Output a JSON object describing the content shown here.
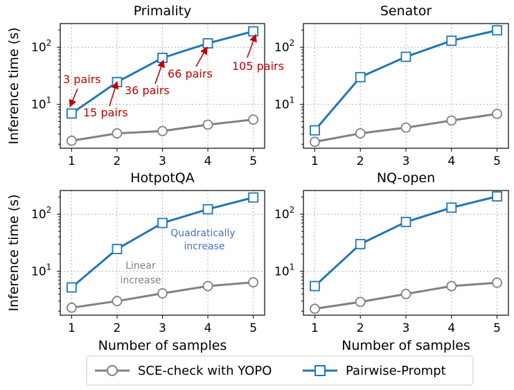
{
  "legend": {
    "placement": "bottom-center",
    "items": [
      {
        "label": "SCE-check with YOPO",
        "color": "#808080",
        "marker": "circle"
      },
      {
        "label": "Pairwise-Prompt",
        "color": "#1f77b4",
        "marker": "square"
      }
    ]
  },
  "colors": {
    "sce": "#808080",
    "pairwise": "#1f77b4",
    "pairs_annotation": "#c00000",
    "quadratic_annotation": "#4472c4",
    "linear_annotation": "#808080"
  },
  "chart_data": [
    {
      "type": "line",
      "title": "Primality",
      "xlabel": "",
      "ylabel": "Inference time (s)",
      "yscale": "log",
      "ylim": [
        1.7,
        260
      ],
      "xlim": [
        0.75,
        5.25
      ],
      "x": [
        1,
        2,
        3,
        4,
        5
      ],
      "xticks": [
        "1",
        "2",
        "3",
        "4",
        "5"
      ],
      "yticks": [
        {
          "value": 10,
          "base": "10",
          "exp": "1"
        },
        {
          "value": 100,
          "base": "10",
          "exp": "2"
        }
      ],
      "grid": true,
      "series": [
        {
          "name": "SCE-check with YOPO",
          "values": [
            2.3,
            3.1,
            3.4,
            4.4,
            5.4
          ]
        },
        {
          "name": "Pairwise-Prompt",
          "values": [
            6.9,
            24.5,
            65,
            117,
            190
          ]
        }
      ],
      "annotations": [
        {
          "text": "3 pairs",
          "style": "pairs",
          "x": 1,
          "y": 6.9
        },
        {
          "text": "15 pairs",
          "style": "pairs",
          "x": 2,
          "y": 24.5
        },
        {
          "text": "36 pairs",
          "style": "pairs",
          "x": 3,
          "y": 65
        },
        {
          "text": "66 pairs",
          "style": "pairs",
          "x": 4,
          "y": 117
        },
        {
          "text": "105 pairs",
          "style": "pairs",
          "x": 5,
          "y": 190
        }
      ]
    },
    {
      "type": "line",
      "title": "Senator",
      "xlabel": "",
      "ylabel": "",
      "yscale": "log",
      "ylim": [
        1.7,
        260
      ],
      "xlim": [
        0.75,
        5.25
      ],
      "x": [
        1,
        2,
        3,
        4,
        5
      ],
      "xticks": [
        "1",
        "2",
        "3",
        "4",
        "5"
      ],
      "yticks": [
        {
          "value": 10,
          "base": "10",
          "exp": "1"
        },
        {
          "value": 100,
          "base": "10",
          "exp": "2"
        }
      ],
      "grid": true,
      "series": [
        {
          "name": "SCE-check with YOPO",
          "values": [
            2.2,
            3.1,
            3.9,
            5.2,
            6.8
          ]
        },
        {
          "name": "Pairwise-Prompt",
          "values": [
            3.5,
            30,
            68,
            130,
            198
          ]
        }
      ],
      "annotations": []
    },
    {
      "type": "line",
      "title": "HotpotQA",
      "xlabel": "Number of samples",
      "ylabel": "Inference time (s)",
      "yscale": "log",
      "ylim": [
        1.7,
        260
      ],
      "xlim": [
        0.75,
        5.25
      ],
      "x": [
        1,
        2,
        3,
        4,
        5
      ],
      "xticks": [
        "1",
        "2",
        "3",
        "4",
        "5"
      ],
      "yticks": [
        {
          "value": 10,
          "base": "10",
          "exp": "1"
        },
        {
          "value": 100,
          "base": "10",
          "exp": "2"
        }
      ],
      "grid": true,
      "series": [
        {
          "name": "SCE-check with YOPO",
          "values": [
            2.3,
            3.0,
            4.1,
            5.5,
            6.4
          ]
        },
        {
          "name": "Pairwise-Prompt",
          "values": [
            5.2,
            24.5,
            70,
            122,
            196
          ]
        }
      ],
      "annotations": [
        {
          "text": "Quadratically",
          "style": "quadratic",
          "x": 4.25,
          "y": 60
        },
        {
          "text": "increase",
          "style": "quadratic",
          "x": 4.25,
          "y": 37
        },
        {
          "text": "Linear",
          "style": "linear",
          "x": 2.55,
          "y": 8.8
        },
        {
          "text": "increase",
          "style": "linear",
          "x": 2.55,
          "y": 5.5
        }
      ]
    },
    {
      "type": "line",
      "title": "NQ-open",
      "xlabel": "Number of samples",
      "ylabel": "",
      "yscale": "log",
      "ylim": [
        1.7,
        260
      ],
      "xlim": [
        0.75,
        5.25
      ],
      "x": [
        1,
        2,
        3,
        4,
        5
      ],
      "xticks": [
        "1",
        "2",
        "3",
        "4",
        "5"
      ],
      "yticks": [
        {
          "value": 10,
          "base": "10",
          "exp": "1"
        },
        {
          "value": 100,
          "base": "10",
          "exp": "2"
        }
      ],
      "grid": true,
      "series": [
        {
          "name": "SCE-check with YOPO",
          "values": [
            2.2,
            2.9,
            4.0,
            5.5,
            6.3
          ]
        },
        {
          "name": "Pairwise-Prompt",
          "values": [
            5.5,
            30,
            73,
            130,
            205
          ]
        }
      ],
      "annotations": []
    }
  ]
}
